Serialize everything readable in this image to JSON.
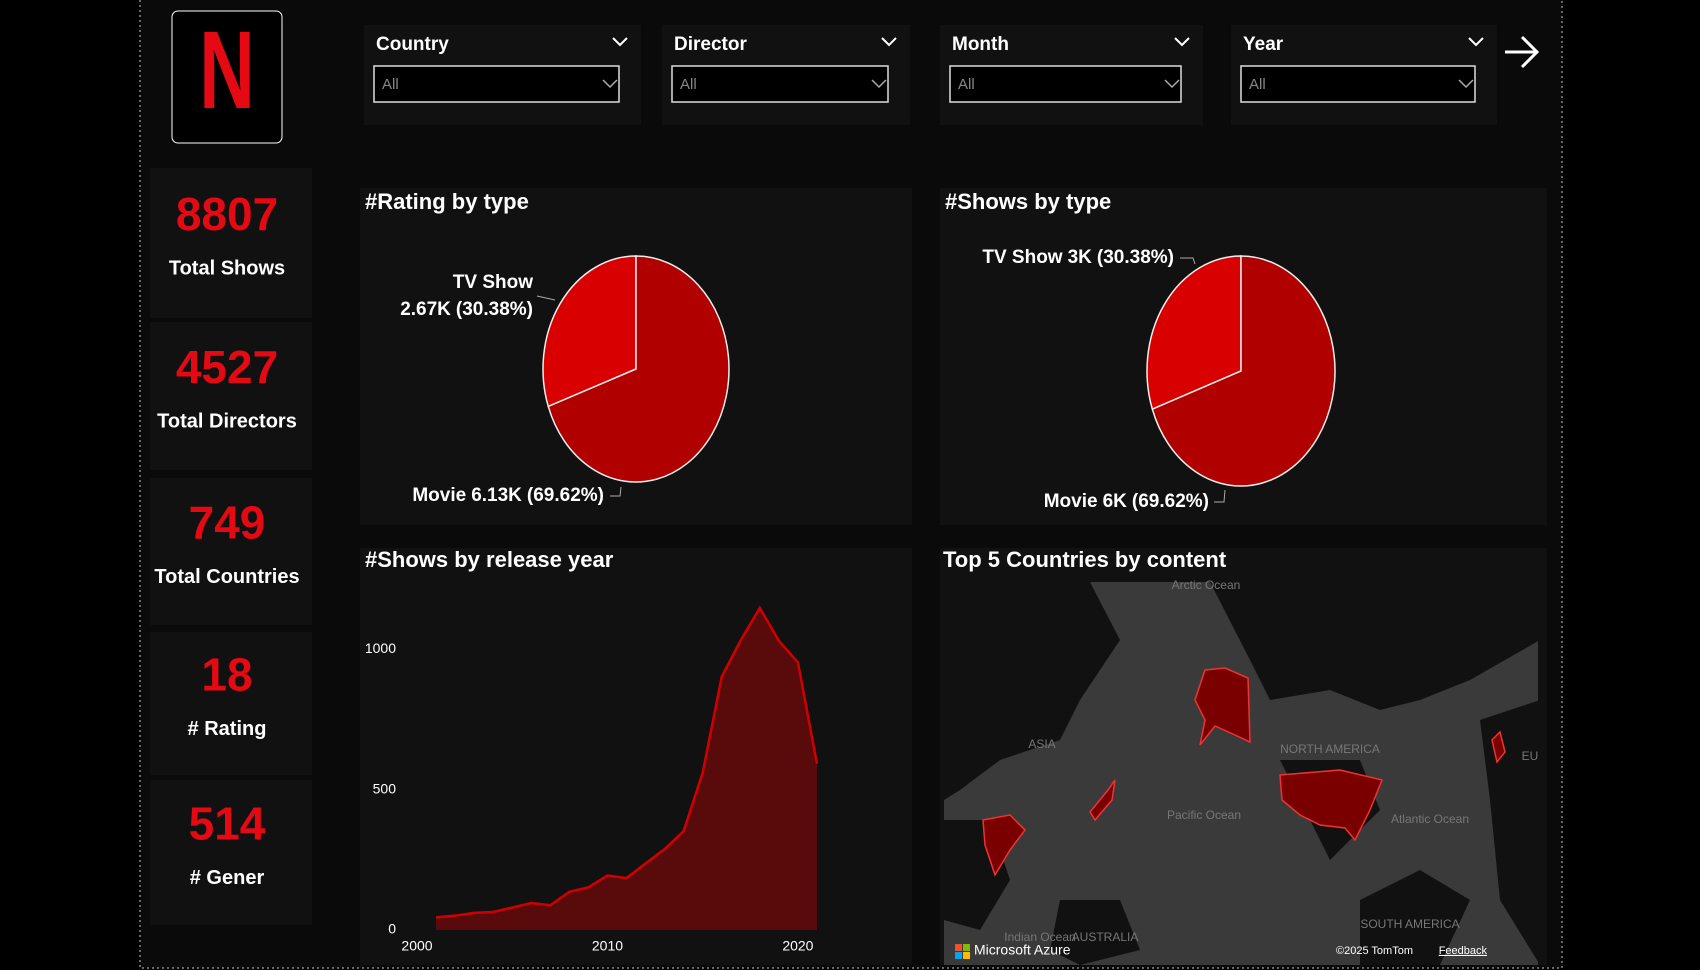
{
  "logo": "N",
  "filters": [
    {
      "label": "Country",
      "value": "All"
    },
    {
      "label": "Director",
      "value": "All"
    },
    {
      "label": "Month",
      "value": "All"
    },
    {
      "label": "Year",
      "value": "All"
    }
  ],
  "kpis": [
    {
      "value": 8807,
      "label": "Total Shows"
    },
    {
      "value": 4527,
      "label": "Total Directors"
    },
    {
      "value": 749,
      "label": "Total Countries"
    },
    {
      "value": 18,
      "label": "# Rating"
    },
    {
      "value": 514,
      "label": "# Gener"
    }
  ],
  "charts": [
    {
      "type": "pie",
      "title": "#Rating by type",
      "categories": [
        "TV Show",
        "Movie"
      ],
      "values": [
        30.38,
        69.62
      ],
      "value_labels": [
        "(30.38%)",
        "(69.62%)"
      ],
      "counts": [
        2670,
        6130
      ],
      "count_labels": [
        "2.67K",
        "6.13K"
      ],
      "colors": [
        "#d80000",
        "#b00000"
      ]
    },
    {
      "type": "pie",
      "title": "#Shows by type",
      "categories": [
        "TV Show",
        "Movie"
      ],
      "values": [
        30.38,
        69.62
      ],
      "value_labels": [
        "(30.38%)",
        "(69.62%)"
      ],
      "counts": [
        3000,
        6000
      ],
      "count_labels": [
        "3K",
        "6K"
      ],
      "colors": [
        "#d80000",
        "#b00000"
      ]
    },
    {
      "type": "area",
      "title": "#Shows by release year",
      "x": [
        2001,
        2002,
        2003,
        2004,
        2005,
        2006,
        2007,
        2008,
        2009,
        2010,
        2011,
        2012,
        2013,
        2014,
        2015,
        2016,
        2017,
        2018,
        2019,
        2020,
        2021
      ],
      "values": [
        45,
        51,
        61,
        64,
        80,
        96,
        88,
        136,
        152,
        194,
        185,
        237,
        288,
        352,
        560,
        902,
        1032,
        1147,
        1030,
        953,
        592
      ],
      "color": "#d00000",
      "xlim": [
        2000,
        2022
      ],
      "ylim": [
        0,
        1250
      ],
      "xticks": [
        2000,
        2010,
        2020
      ],
      "yticks": [
        0,
        500,
        1000
      ]
    },
    {
      "type": "map",
      "title": "Top 5 Countries by content",
      "labels": [
        "Arctic Ocean",
        "ASIA",
        "NORTH AMERICA",
        "Pacific Ocean",
        "Atlantic Ocean",
        "Indian Ocean",
        "AUSTRALIA",
        "SOUTH AMERICA",
        "EU"
      ],
      "provider": "Microsoft Azure",
      "copyright": "©2025 TomTom",
      "feedback": "Feedback"
    }
  ]
}
